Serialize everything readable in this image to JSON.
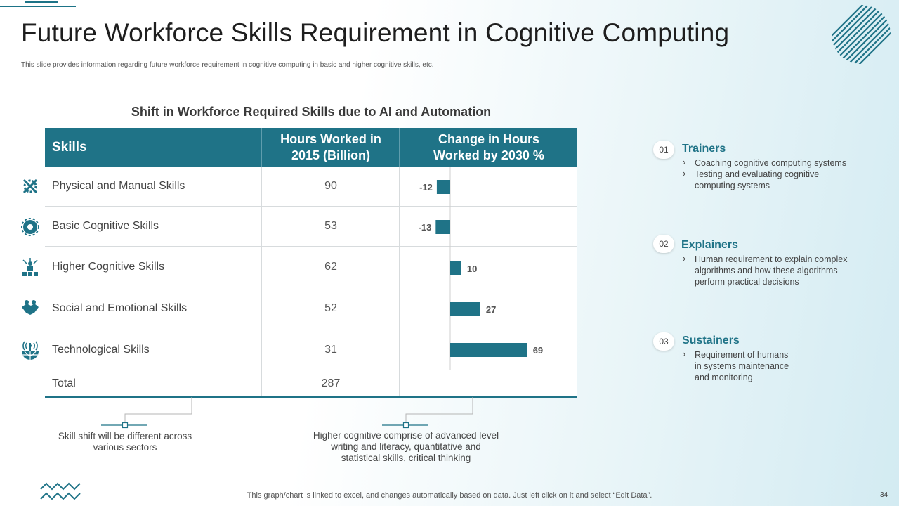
{
  "slide": {
    "title": "Future Workforce Skills Requirement in Cognitive Computing",
    "subtitle": "This slide provides information regarding future workforce requirement in cognitive computing in basic and higher cognitive skills, etc.",
    "footer": "This graph/chart is linked to excel,  and changes automatically based on data. Just left click on it and select “Edit Data”.",
    "page_number": "34"
  },
  "table": {
    "headers": {
      "skills": "Skills",
      "hours_line1": "Hours Worked in",
      "hours_line2": "2015 (Billion)",
      "change_line1": "Change in Hours",
      "change_line2": "Worked by 2030 %"
    },
    "rows": [
      {
        "skill": "Physical and Manual Skills",
        "hours": "90",
        "icon": "gear-tools-icon"
      },
      {
        "skill": "Basic Cognitive Skills",
        "hours": "53",
        "icon": "brain-gear-icon"
      },
      {
        "skill": "Higher Cognitive Skills",
        "hours": "62",
        "icon": "network-people-icon"
      },
      {
        "skill": "Social and Emotional Skills",
        "hours": "52",
        "icon": "handshake-icon"
      },
      {
        "skill": "Technological Skills",
        "hours": "31",
        "icon": "globe-antenna-icon"
      }
    ],
    "total": {
      "label": "Total",
      "hours": "287"
    }
  },
  "chart_data": {
    "type": "bar",
    "orientation": "horizontal",
    "title": "Shift in Workforce Required Skills due to AI and Automation",
    "categories": [
      "Physical and Manual Skills",
      "Basic Cognitive Skills",
      "Higher Cognitive Skills",
      "Social and Emotional Skills",
      "Technological Skills"
    ],
    "values": [
      -12,
      -13,
      10,
      27,
      69
    ],
    "data_labels": [
      "-12",
      "-13",
      "10",
      "27",
      "69"
    ],
    "xlim": [
      -20,
      80
    ],
    "color": "#1f7387"
  },
  "callouts": {
    "left": [
      "Skill shift will be different across",
      "various sectors"
    ],
    "right": [
      "Higher cognitive comprise of advanced level",
      "writing and literacy, quantitative and",
      "statistical skills, critical thinking"
    ]
  },
  "right_panel": [
    {
      "number": "01",
      "title": "Trainers",
      "items": [
        "Coaching cognitive computing systems",
        "Testing and evaluating cognitive computing systems"
      ]
    },
    {
      "number": "02",
      "title": "Explainers",
      "items": [
        "Human requirement to explain complex algorithms and how these algorithms perform practical decisions"
      ]
    },
    {
      "number": "03",
      "title": "Sustainers",
      "items": [
        "Requirement of humans in systems maintenance and monitoring"
      ]
    }
  ],
  "colors": {
    "accent": "#1f7387"
  }
}
